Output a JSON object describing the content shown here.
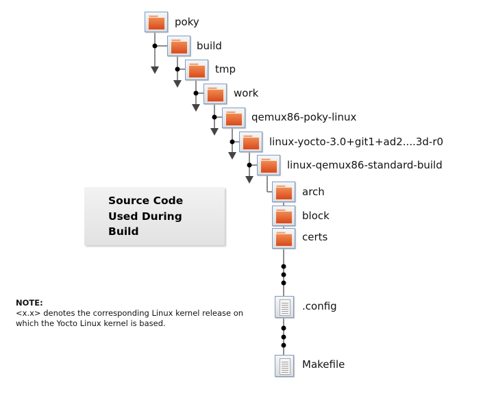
{
  "folders": [
    {
      "label": "poky"
    },
    {
      "label": "build"
    },
    {
      "label": "tmp"
    },
    {
      "label": "work"
    },
    {
      "label": "qemux86-poky-linux"
    },
    {
      "label": "linux-yocto-3.0+git1+ad2....3d-r0"
    },
    {
      "label": "linux-qemux86-standard-build"
    },
    {
      "label": "arch"
    },
    {
      "label": "block"
    },
    {
      "label": "certs"
    }
  ],
  "files": [
    {
      "label": ".config"
    },
    {
      "label": "Makefile"
    }
  ],
  "callout": {
    "line1": "Source Code",
    "line2": "Used During",
    "line3": "Build"
  },
  "note": {
    "title": "NOTE:",
    "line1": "<x.x> denotes the corresponding Linux kernel release on",
    "line2": "which the Yocto Linux kernel is based."
  },
  "colors": {
    "folder": "#e2561f",
    "icon_border": "#7b9bc8",
    "line": "#666666"
  }
}
